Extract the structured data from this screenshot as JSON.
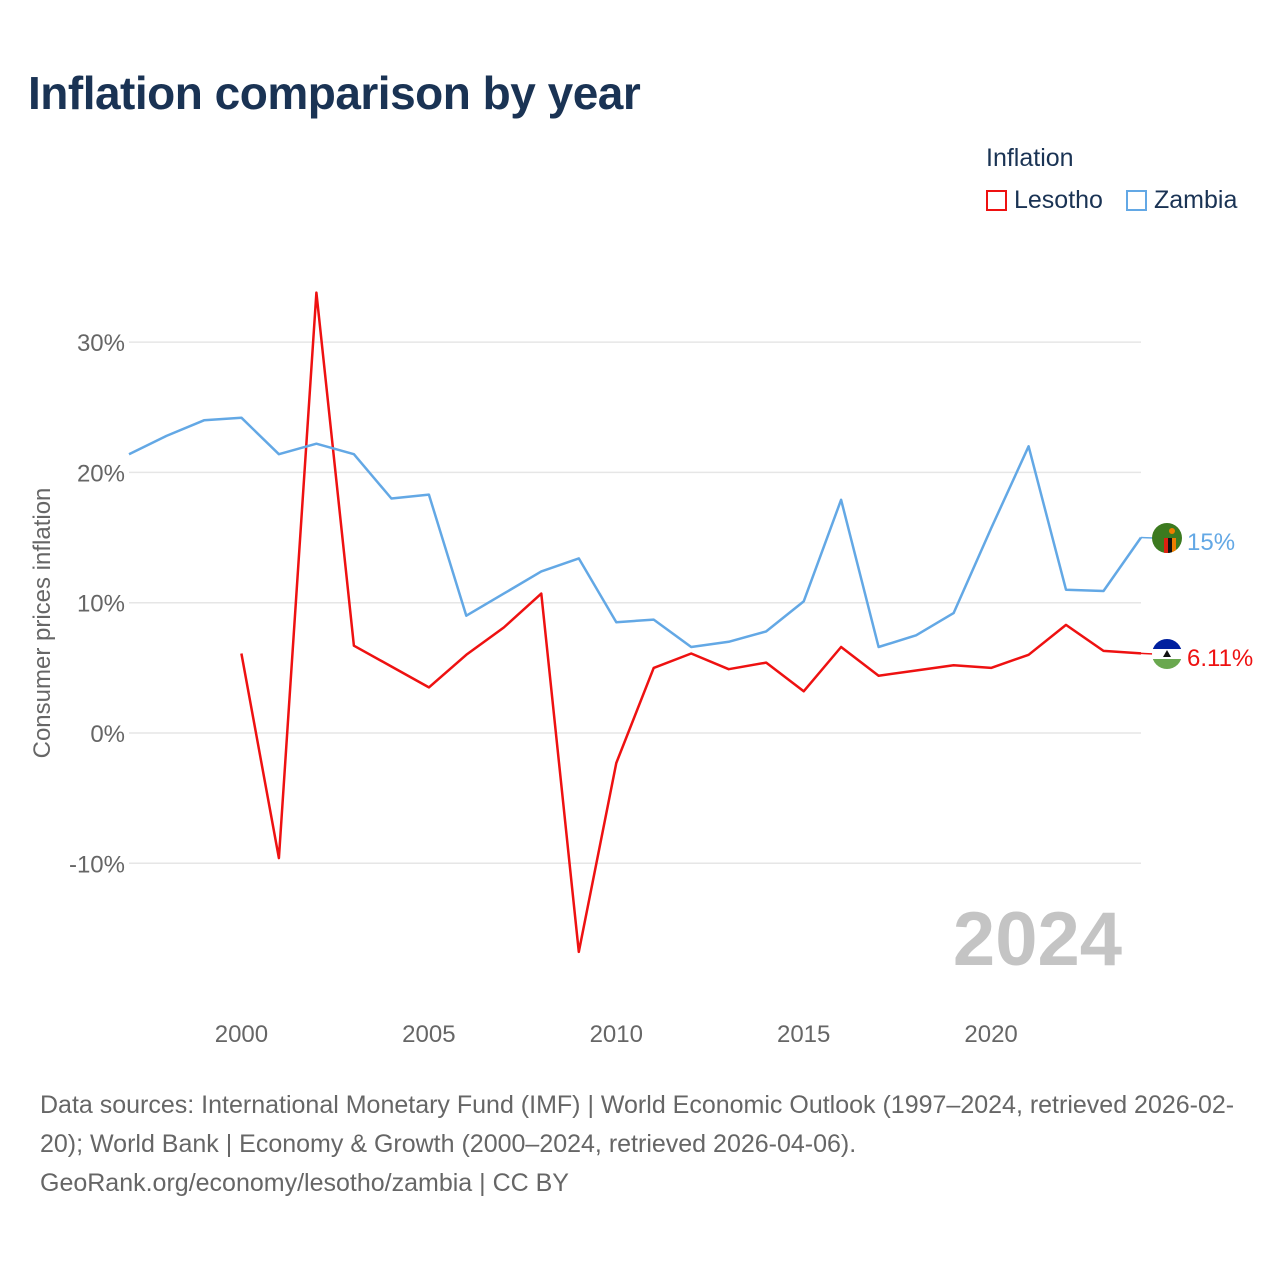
{
  "title": "Inflation comparison by year",
  "legend": {
    "title": "Inflation",
    "items": [
      {
        "label": "Lesotho",
        "color": "#ee1111"
      },
      {
        "label": "Zambia",
        "color": "#63a8e5"
      }
    ]
  },
  "chart_data": {
    "type": "line",
    "title": "Inflation comparison by year",
    "xlabel": "",
    "ylabel": "Consumer prices inflation",
    "xlim": [
      1997,
      2024
    ],
    "ylim": [
      -20,
      35
    ],
    "x_ticks": [
      2000,
      2005,
      2010,
      2015,
      2020
    ],
    "y_ticks": [
      {
        "value": -10,
        "label": "-10%"
      },
      {
        "value": 0,
        "label": "0%"
      },
      {
        "value": 10,
        "label": "10%"
      },
      {
        "value": 20,
        "label": "20%"
      },
      {
        "value": 30,
        "label": "30%"
      }
    ],
    "grid": true,
    "year_label": "2024",
    "series": [
      {
        "name": "Lesotho",
        "color": "#ee1111",
        "end_label": "6.11%",
        "x": [
          2000,
          2001,
          2002,
          2003,
          2004,
          2005,
          2006,
          2007,
          2008,
          2009,
          2010,
          2011,
          2012,
          2013,
          2014,
          2015,
          2016,
          2017,
          2018,
          2019,
          2020,
          2021,
          2022,
          2023,
          2024
        ],
        "values": [
          6.1,
          -9.6,
          33.8,
          6.7,
          5.1,
          3.5,
          6.0,
          8.1,
          10.7,
          -16.8,
          -2.3,
          5.0,
          6.1,
          4.9,
          5.4,
          3.2,
          6.6,
          4.4,
          4.8,
          5.2,
          5.0,
          6.0,
          8.3,
          6.3,
          6.11
        ]
      },
      {
        "name": "Zambia",
        "color": "#63a8e5",
        "end_label": "15%",
        "x": [
          1997,
          1998,
          1999,
          2000,
          2001,
          2002,
          2003,
          2004,
          2005,
          2006,
          2007,
          2008,
          2009,
          2010,
          2011,
          2012,
          2013,
          2014,
          2015,
          2016,
          2017,
          2018,
          2019,
          2020,
          2021,
          2022,
          2023,
          2024
        ],
        "values": [
          21.4,
          22.8,
          24.0,
          24.2,
          21.4,
          22.2,
          21.4,
          18.0,
          18.3,
          9.0,
          10.7,
          12.4,
          13.4,
          8.5,
          8.7,
          6.6,
          7.0,
          7.8,
          10.1,
          17.9,
          6.6,
          7.5,
          9.2,
          15.7,
          22.0,
          11.0,
          10.9,
          15.0
        ]
      }
    ]
  },
  "footer": {
    "line1": "Data sources: International Monetary Fund (IMF) | World Economic Outlook (1997–2024, retrieved 2026-02-20); World Bank | Economy & Growth (2000–2024, retrieved 2026-04-06).",
    "line2": "GeoRank.org/economy/lesotho/zambia | CC BY"
  }
}
